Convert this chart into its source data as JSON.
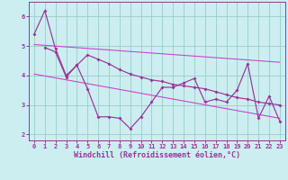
{
  "line1_x": [
    0,
    1,
    2,
    3,
    4,
    5,
    6,
    7,
    8,
    9,
    10,
    11,
    12,
    13,
    14,
    15,
    16,
    17,
    18,
    19,
    20,
    21,
    22,
    23
  ],
  "line1_y": [
    5.4,
    6.2,
    4.9,
    4.0,
    4.35,
    3.55,
    2.6,
    2.6,
    2.55,
    2.2,
    2.6,
    3.1,
    3.6,
    3.6,
    3.75,
    3.9,
    3.1,
    3.2,
    3.1,
    3.5,
    4.4,
    2.55,
    3.3,
    2.45
  ],
  "line2_x": [
    1,
    2,
    3,
    4,
    5,
    6,
    7,
    8,
    9,
    10,
    11,
    12,
    13,
    14,
    15,
    16,
    17,
    18,
    19,
    20,
    21,
    22,
    23
  ],
  "line2_y": [
    4.95,
    4.8,
    3.95,
    4.35,
    4.7,
    4.55,
    4.4,
    4.2,
    4.05,
    3.95,
    3.85,
    3.8,
    3.7,
    3.65,
    3.6,
    3.55,
    3.45,
    3.35,
    3.25,
    3.2,
    3.1,
    3.05,
    3.0
  ],
  "trend1_x": [
    0,
    23
  ],
  "trend1_y": [
    5.05,
    4.45
  ],
  "trend2_x": [
    0,
    23
  ],
  "trend2_y": [
    4.05,
    2.55
  ],
  "line_color": "#993399",
  "trend_color": "#cc44cc",
  "bg_color": "#cceef0",
  "grid_color": "#99cccc",
  "xlabel": "Windchill (Refroidissement éolien,°C)",
  "xlabel_fontsize": 6,
  "tick_fontsize": 5,
  "ylim": [
    1.8,
    6.5
  ],
  "xlim": [
    -0.5,
    23.5
  ],
  "yticks": [
    2,
    3,
    4,
    5,
    6
  ],
  "xticks": [
    0,
    1,
    2,
    3,
    4,
    5,
    6,
    7,
    8,
    9,
    10,
    11,
    12,
    13,
    14,
    15,
    16,
    17,
    18,
    19,
    20,
    21,
    22,
    23
  ]
}
